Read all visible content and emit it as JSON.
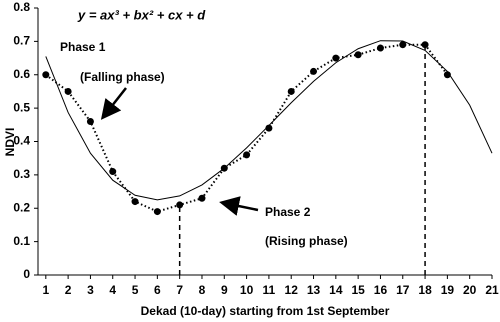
{
  "chart_data": {
    "type": "scatter",
    "equation": "y = ax³ + bx² + cx + d",
    "x_label": "Dekad (10-day) starting from 1st September",
    "y_label": "NDVI",
    "annotations": [
      "Phase 1",
      "(Falling phase)",
      "Phase 2",
      "(Rising phase)"
    ],
    "xlim": [
      0.65,
      21
    ],
    "ylim": [
      0,
      0.8
    ],
    "xticks": [
      1,
      2,
      3,
      4,
      5,
      6,
      7,
      8,
      9,
      10,
      11,
      12,
      13,
      14,
      15,
      16,
      17,
      18,
      19,
      20,
      21
    ],
    "yticks": [
      0,
      0.1,
      0.2,
      0.3,
      0.4,
      0.5,
      0.6,
      0.7,
      0.8
    ],
    "series": [
      {
        "color": "#000000",
        "line": "dotted",
        "x": [
          1,
          2,
          3,
          4,
          5,
          6,
          7,
          8,
          9,
          10,
          11,
          12,
          13,
          14,
          15,
          16,
          17,
          18,
          19
        ],
        "values": [
          0.6,
          0.55,
          0.46,
          0.31,
          0.22,
          0.19,
          0.21,
          0.23,
          0.32,
          0.36,
          0.44,
          0.55,
          0.61,
          0.65,
          0.66,
          0.68,
          0.69,
          0.69,
          0.6
        ]
      },
      {
        "color": "#000000",
        "line": "solid",
        "x": [
          1,
          2,
          3,
          4,
          5,
          6,
          7,
          8,
          9,
          10,
          11,
          12,
          13,
          14,
          15,
          16,
          17,
          18,
          19,
          20,
          21
        ],
        "values": [
          0.655,
          0.487,
          0.365,
          0.284,
          0.239,
          0.225,
          0.237,
          0.27,
          0.32,
          0.381,
          0.448,
          0.516,
          0.58,
          0.636,
          0.678,
          0.702,
          0.701,
          0.673,
          0.61,
          0.509,
          0.365
        ]
      }
    ],
    "dashed_x": [
      7,
      18
    ]
  }
}
